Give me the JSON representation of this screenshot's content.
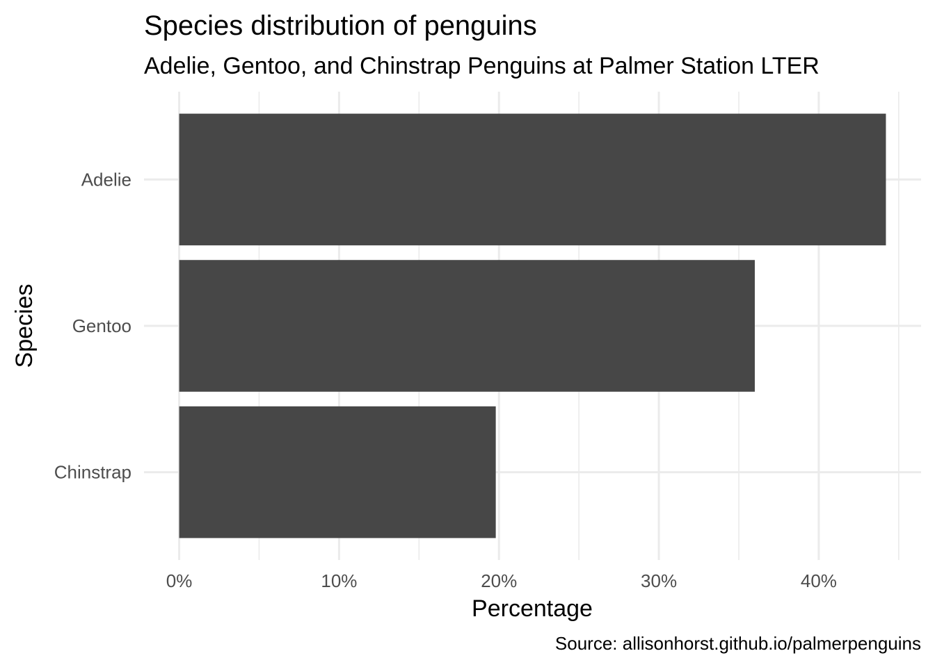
{
  "chart_data": {
    "type": "bar",
    "orientation": "horizontal",
    "title": "Species distribution of penguins",
    "subtitle": "Adelie, Gentoo, and Chinstrap Penguins at Palmer Station LTER",
    "caption": "Source: allisonhorst.github.io/palmerpenguins",
    "xlabel": "Percentage",
    "ylabel": "Species",
    "categories": [
      "Adelie",
      "Gentoo",
      "Chinstrap"
    ],
    "values": [
      44.2,
      36.0,
      19.8
    ],
    "x_ticks": [
      {
        "value": 0,
        "label": "0%"
      },
      {
        "value": 10,
        "label": "10%"
      },
      {
        "value": 20,
        "label": "20%"
      },
      {
        "value": 30,
        "label": "30%"
      },
      {
        "value": 40,
        "label": "40%"
      }
    ],
    "xlim": [
      -2.2,
      46.4
    ],
    "grid": true,
    "legend": "none",
    "bar_color": "#474747",
    "grid_color": "#ebebeb"
  }
}
